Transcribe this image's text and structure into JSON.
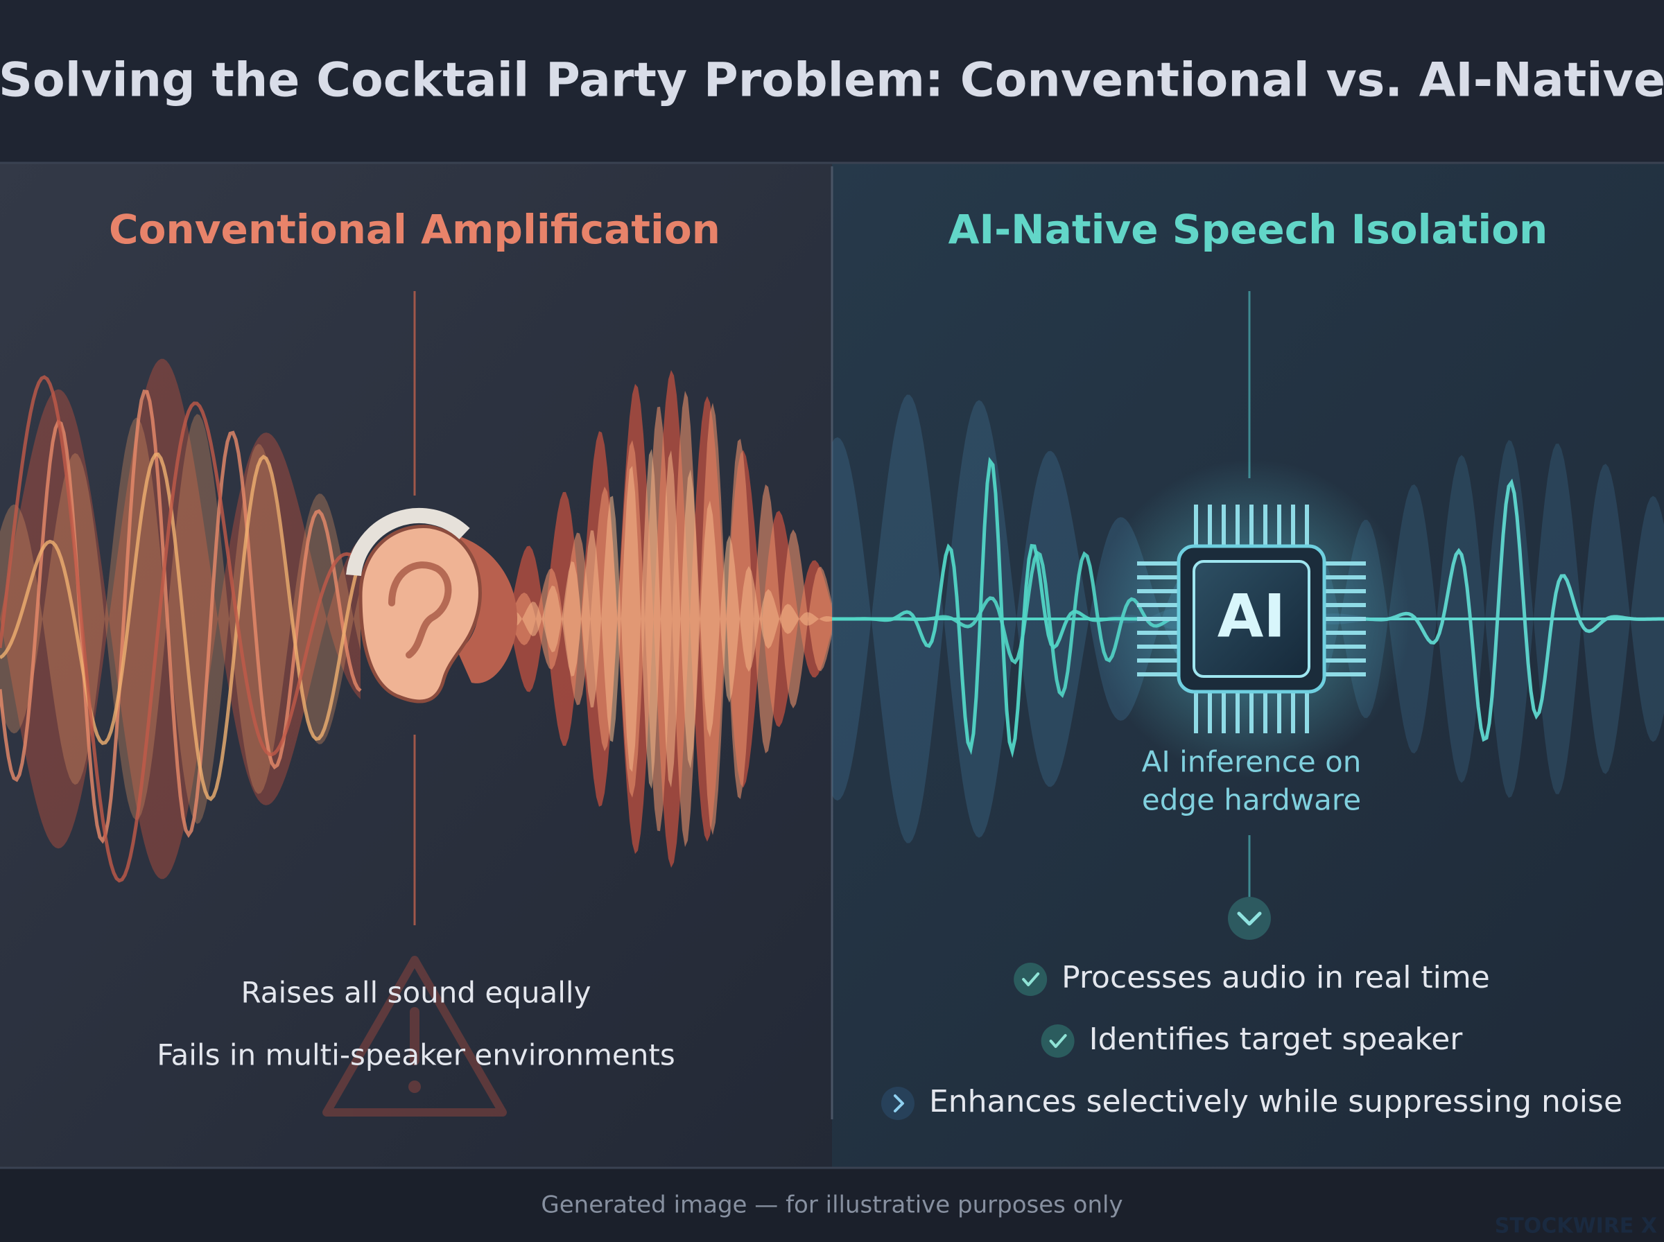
{
  "header": {
    "title": "Solving the Cocktail Party Problem: Conventional vs. AI-Native"
  },
  "left_panel": {
    "title": "Conventional Amplification",
    "points": [
      "Raises all sound equally",
      "Fails in multi-speaker environments"
    ]
  },
  "right_panel": {
    "title": "AI-Native Speech Isolation",
    "chip_label": "AI",
    "caption": [
      "AI inference on",
      "edge hardware"
    ],
    "points": [
      "Processes audio in real time",
      "Identifies target speaker",
      "Enhances selectively while suppressing noise"
    ]
  },
  "footer": {
    "note": "Generated image — for illustrative purposes only",
    "watermark": "STOCKWIRE X"
  }
}
